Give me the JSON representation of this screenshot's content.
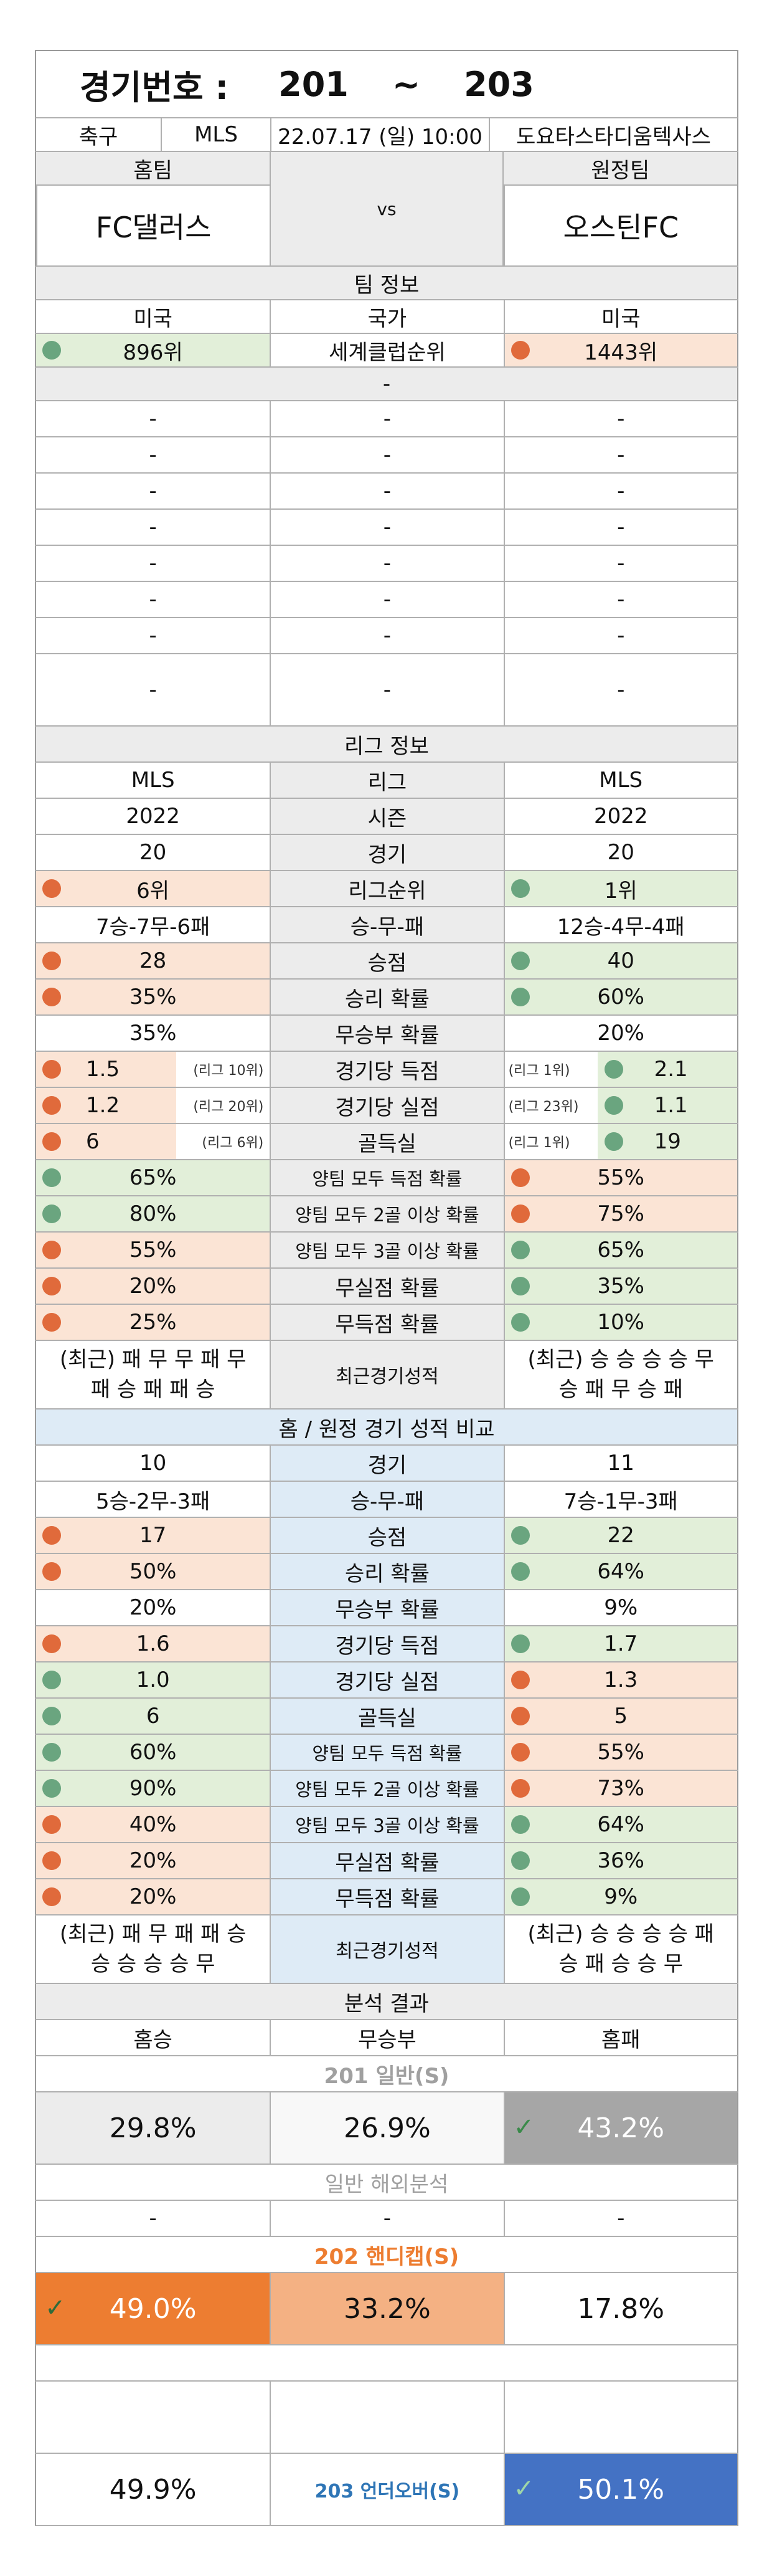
{
  "header": {
    "label": "경기번호 :",
    "from": "201",
    "tilde": "~",
    "to": "203"
  },
  "match": {
    "sport": "축구",
    "league": "MLS",
    "datetime": "22.07.17 (일) 10:00",
    "venue": "도요타스타디움텍사스"
  },
  "teams": {
    "home_label": "홈팀",
    "away_label": "원정팀",
    "vs": "vs",
    "home": "FC댈러스",
    "away": "오스틴FC"
  },
  "team_info": {
    "title": "팀 정보",
    "country": {
      "home": "미국",
      "label": "국가",
      "away": "미국"
    },
    "ranking": {
      "home": "896위",
      "label": "세계클럽순위",
      "away": "1443위"
    },
    "blank": "-"
  },
  "league_info": {
    "title": "리그 정보",
    "rows": [
      {
        "home": "MLS",
        "label": "리그",
        "away": "MLS"
      },
      {
        "home": "2022",
        "label": "시즌",
        "away": "2022"
      },
      {
        "home": "20",
        "label": "경기",
        "away": "20"
      },
      {
        "home": "6위",
        "label": "리그순위",
        "away": "1위",
        "hc": "r",
        "ac": "g"
      },
      {
        "home": "7승-7무-6패",
        "label": "승-무-패",
        "away": "12승-4무-4패"
      },
      {
        "home": "28",
        "label": "승점",
        "away": "40",
        "hc": "r",
        "ac": "g"
      },
      {
        "home": "35%",
        "label": "승리 확률",
        "away": "60%",
        "hc": "r",
        "ac": "g"
      },
      {
        "home": "35%",
        "label": "무승부 확률",
        "away": "20%"
      }
    ],
    "ranked_rows": [
      {
        "home": "1.5",
        "home_sub": "(리그 10위)",
        "label": "경기당 득점",
        "away_sub": "(리그 1위)",
        "away": "2.1",
        "hc": "r",
        "ac": "g"
      },
      {
        "home": "1.2",
        "home_sub": "(리그 20위)",
        "label": "경기당 실점",
        "away_sub": "(리그 23위)",
        "away": "1.1",
        "hc": "r",
        "ac": "g"
      },
      {
        "home": "6",
        "home_sub": "(리그 6위)",
        "label": "골득실",
        "away_sub": "(리그 1위)",
        "away": "19",
        "hc": "r",
        "ac": "g"
      }
    ],
    "rows2": [
      {
        "home": "65%",
        "label": "양팀 모두 득점 확률",
        "away": "55%",
        "hc": "g",
        "ac": "r"
      },
      {
        "home": "80%",
        "label": "양팀 모두 2골 이상 확률",
        "away": "75%",
        "hc": "g",
        "ac": "r"
      },
      {
        "home": "55%",
        "label": "양팀 모두 3골 이상 확률",
        "away": "65%",
        "hc": "r",
        "ac": "g"
      },
      {
        "home": "20%",
        "label": "무실점 확률",
        "away": "35%",
        "hc": "r",
        "ac": "g"
      },
      {
        "home": "25%",
        "label": "무득점 확률",
        "away": "10%",
        "hc": "r",
        "ac": "g"
      }
    ],
    "recent": {
      "home1": "(최근) 패 무 무 패 무",
      "home2": "패 승 패 패 승",
      "label": "최근경기성적",
      "away1": "(최근) 승 승 승 승 무",
      "away2": "승 패 무 승 패"
    }
  },
  "homeaway": {
    "title": "홈 / 원정 경기 성적 비교",
    "rows": [
      {
        "home": "10",
        "label": "경기",
        "away": "11"
      },
      {
        "home": "5승-2무-3패",
        "label": "승-무-패",
        "away": "7승-1무-3패"
      },
      {
        "home": "17",
        "label": "승점",
        "away": "22",
        "hc": "r",
        "ac": "g"
      },
      {
        "home": "50%",
        "label": "승리 확률",
        "away": "64%",
        "hc": "r",
        "ac": "g"
      },
      {
        "home": "20%",
        "label": "무승부 확률",
        "away": "9%"
      },
      {
        "home": "1.6",
        "label": "경기당 득점",
        "away": "1.7",
        "hc": "r",
        "ac": "g"
      },
      {
        "home": "1.0",
        "label": "경기당 실점",
        "away": "1.3",
        "hc": "g",
        "ac": "r"
      },
      {
        "home": "6",
        "label": "골득실",
        "away": "5",
        "hc": "g",
        "ac": "r"
      },
      {
        "home": "60%",
        "label": "양팀 모두 득점 확률",
        "away": "55%",
        "hc": "g",
        "ac": "r"
      },
      {
        "home": "90%",
        "label": "양팀 모두 2골 이상 확률",
        "away": "73%",
        "hc": "g",
        "ac": "r"
      },
      {
        "home": "40%",
        "label": "양팀 모두 3골 이상 확률",
        "away": "64%",
        "hc": "r",
        "ac": "g"
      },
      {
        "home": "20%",
        "label": "무실점 확률",
        "away": "36%",
        "hc": "r",
        "ac": "g"
      },
      {
        "home": "20%",
        "label": "무득점 확률",
        "away": "9%",
        "hc": "r",
        "ac": "g"
      }
    ],
    "recent": {
      "home1": "(최근) 패 무 패 패 승",
      "home2": "승 승 승 승 무",
      "label": "최근경기성적",
      "away1": "(최근) 승 승 승 승 패",
      "away2": "승 패 승 승 무"
    }
  },
  "analysis": {
    "title": "분석 결과",
    "cols": {
      "home_win": "홈승",
      "draw": "무승부",
      "home_loss": "홈패"
    },
    "s201": {
      "title": "201 일반(S)",
      "home": "29.8%",
      "draw": "26.9%",
      "away": "43.2%"
    },
    "overseas": {
      "title": "일반 해외분석",
      "home": "-",
      "draw": "-",
      "away": "-"
    },
    "s202": {
      "title": "202 핸디캡(S)",
      "home": "49.0%",
      "draw": "33.2%",
      "away": "17.8%"
    },
    "s203": {
      "under": "49.9%",
      "label": "203 언더오버(S)",
      "over": "50.1%"
    }
  },
  "colors": {
    "green_dot": "#6aa57f",
    "red_dot": "#e06a3b",
    "orange": "#ed7d31",
    "blue": "#4472c4",
    "gray": "#a6a6a6"
  }
}
